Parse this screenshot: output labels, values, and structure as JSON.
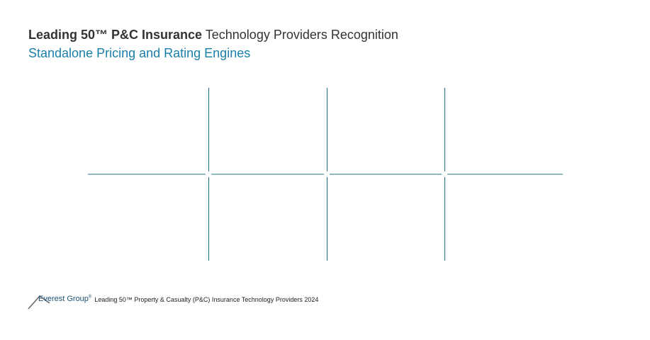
{
  "header": {
    "title_bold": "Leading 50™ P&C Insurance",
    "title_rest": "Technology Providers Recognition",
    "subtitle": "Standalone Pricing and Rating Engines"
  },
  "footer": {
    "brand": "Everest Group",
    "brand_mark": "®",
    "text": "Leading 50™ Property & Casualty (P&C) Insurance Technology Providers 2024"
  }
}
